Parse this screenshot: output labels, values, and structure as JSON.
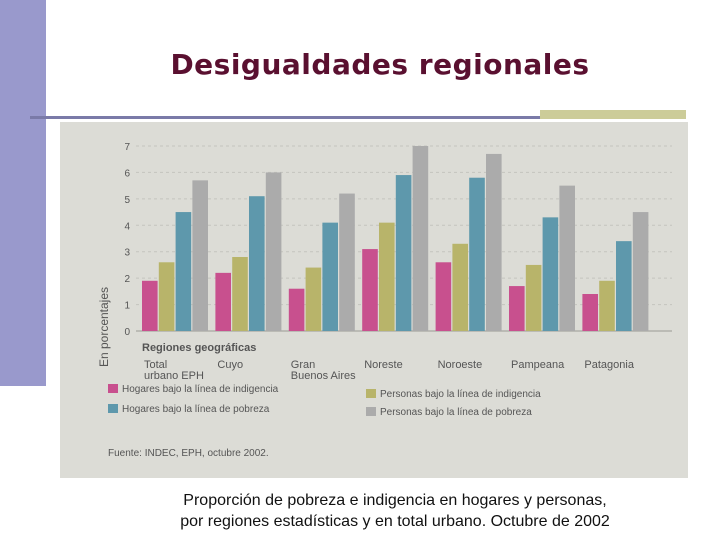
{
  "slide": {
    "title": "Desigualdades regionales",
    "caption_line1": "Proporción de pobreza e indigencia en hogares y personas,",
    "caption_line2": "por regiones  estadísticas y en total urbano. Octubre de 2002"
  },
  "chart_data": {
    "type": "bar",
    "ylabel": "En porcentajes",
    "xlabel": "Regiones geográficas",
    "y_ticks": [
      "0",
      "1",
      "2",
      "3",
      "4",
      "5",
      "6",
      "7"
    ],
    "ylim": [
      0,
      7
    ],
    "categories": [
      "Total urbano EPH",
      "Cuyo",
      "Gran Buenos Aires",
      "Noreste",
      "Noroeste",
      "Pampeana",
      "Patagonia"
    ],
    "category_labels": [
      [
        "Total",
        "urbano EPH"
      ],
      [
        "Cuyo"
      ],
      [
        "Gran",
        "Buenos Aires"
      ],
      [
        "Noreste"
      ],
      [
        "Noroeste"
      ],
      [
        "Pampeana"
      ],
      [
        "Patagonia"
      ]
    ],
    "series": [
      {
        "name": "Hogares bajo la línea de indigencia",
        "color": "#c8508e",
        "values": [
          1.9,
          2.2,
          1.6,
          3.1,
          2.6,
          1.7,
          1.4
        ]
      },
      {
        "name": "Personas bajo la línea de indigencia",
        "color": "#b8b46a",
        "values": [
          2.6,
          2.8,
          2.4,
          4.1,
          3.3,
          2.5,
          1.9
        ]
      },
      {
        "name": "Hogares bajo la línea de pobreza",
        "color": "#5e98ac",
        "values": [
          4.5,
          5.1,
          4.1,
          5.9,
          5.8,
          4.3,
          3.4
        ]
      },
      {
        "name": "Personas bajo la línea de pobreza",
        "color": "#ababab",
        "values": [
          5.7,
          6.0,
          5.2,
          7.0,
          6.7,
          5.5,
          4.5
        ]
      }
    ],
    "legend": [
      "Hogares bajo la línea de indigencia",
      "Hogares bajo la línea de pobreza",
      "Personas bajo la línea de indigencia",
      "Personas bajo la línea de pobreza"
    ],
    "source": "Fuente: INDEC, EPH, octubre 2002."
  }
}
